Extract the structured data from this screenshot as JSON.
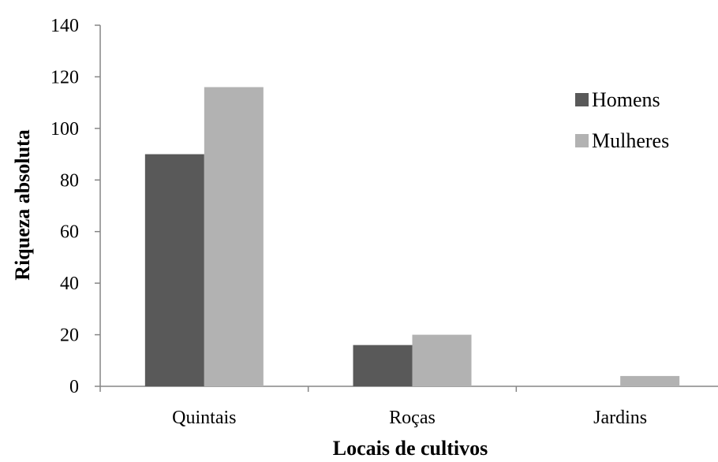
{
  "chart_data": {
    "type": "bar",
    "title": "",
    "xlabel": "Locais de cultivos",
    "ylabel": "Riqueza absoluta",
    "categories": [
      "Quintais",
      "Roças",
      "Jardins"
    ],
    "series": [
      {
        "name": "Homens",
        "values": [
          90,
          16,
          0
        ],
        "color": "#595959"
      },
      {
        "name": "Mulheres",
        "values": [
          116,
          20,
          4
        ],
        "color": "#b2b2b2"
      }
    ],
    "ylim": [
      0,
      140
    ],
    "yticks": [
      0,
      20,
      40,
      60,
      80,
      100,
      120,
      140
    ],
    "grid": false,
    "legend": "right"
  }
}
